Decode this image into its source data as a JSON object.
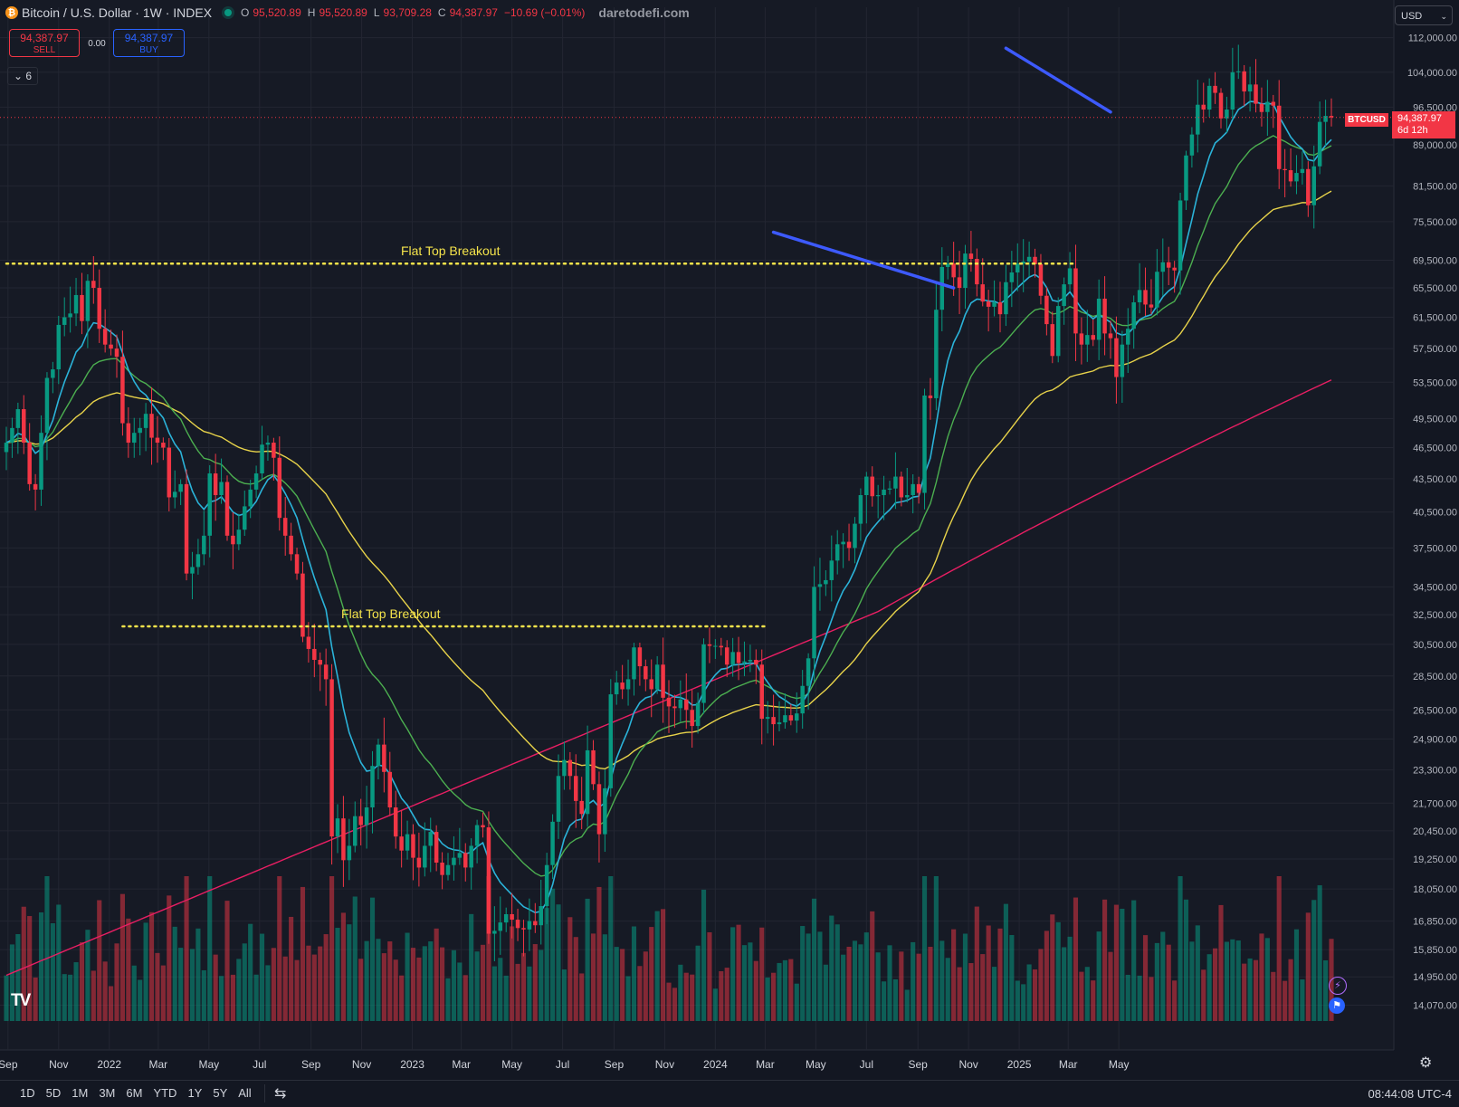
{
  "header": {
    "coin_glyph": "₿",
    "title": "Bitcoin / U.S. Dollar · 1W · INDEX",
    "ohlc": [
      {
        "k": "O",
        "v": "95,520.89"
      },
      {
        "k": "H",
        "v": "95,520.89"
      },
      {
        "k": "L",
        "v": "93,709.28"
      },
      {
        "k": "C",
        "v": "94,387.97"
      },
      {
        "k": "",
        "v": "−10.69 (−0.01%)"
      }
    ],
    "watermark": "daretodefi.com"
  },
  "trade": {
    "sell_price": "94,387.97",
    "sell_label": "SELL",
    "spread": "0.00",
    "buy_price": "94,387.97",
    "buy_label": "BUY"
  },
  "indicators_toggle": "6",
  "currency": "USD",
  "last_price": {
    "symbol": "BTCUSD",
    "price": "94,387.97",
    "countdown": "6d 12h",
    "value": 94387.97
  },
  "bottom_bar": {
    "ranges": [
      "1D",
      "5D",
      "1M",
      "3M",
      "6M",
      "YTD",
      "1Y",
      "5Y",
      "All"
    ],
    "clock": "08:44:08 UTC-4"
  },
  "colors": {
    "bg": "#161a25",
    "up": "#089981",
    "down": "#f23645",
    "grid": "#232632",
    "ema_fast": "#2bb3d9",
    "ema_mid": "#4caf50",
    "ema_slow": "#e8d34a",
    "ma_long": "#e91e63",
    "trendline": "#3d5afe",
    "breakout": "#f5e44b"
  },
  "chart_data": {
    "type": "candlestick",
    "timeframe": "1W",
    "y_scale": "log",
    "y_ticks": [
      112000,
      104000,
      96500,
      89000,
      81500,
      75500,
      69500,
      65500,
      61500,
      57500,
      53500,
      49500,
      46500,
      43500,
      40500,
      37500,
      34500,
      32500,
      30500,
      28500,
      26500,
      24900,
      23300,
      21700,
      20450,
      19250,
      18050,
      16850,
      15850,
      14950,
      14070
    ],
    "y_tick_labels": [
      "112,000.00",
      "104,000.00",
      "96,500.00",
      "89,000.00",
      "81,500.00",
      "75,500.00",
      "69,500.00",
      "65,500.00",
      "61,500.00",
      "57,500.00",
      "53,500.00",
      "49,500.00",
      "46,500.00",
      "43,500.00",
      "40,500.00",
      "37,500.00",
      "34,500.00",
      "32,500.00",
      "30,500.00",
      "28,500.00",
      "26,500.00",
      "24,900.00",
      "23,300.00",
      "21,700.00",
      "20,450.00",
      "19,250.00",
      "18,050.00",
      "16,850.00",
      "15,850.00",
      "14,950.00",
      "14,070.00"
    ],
    "x_ticks": [
      "Sep",
      "Nov",
      "2022",
      "Mar",
      "May",
      "Jul",
      "Sep",
      "Nov",
      "2023",
      "Mar",
      "May",
      "Jul",
      "Sep",
      "Nov",
      "2024",
      "Mar",
      "May",
      "Jul",
      "Sep",
      "Nov",
      "2025",
      "Mar",
      "May"
    ],
    "x_start": "2021-08-30",
    "closes": [
      47000,
      48500,
      50500,
      47000,
      43000,
      42500,
      48000,
      54000,
      55000,
      60500,
      61500,
      62000,
      64500,
      61000,
      66500,
      65500,
      60000,
      58000,
      57500,
      56500,
      49000,
      47000,
      48000,
      48500,
      50000,
      47500,
      47000,
      46500,
      41800,
      42300,
      43000,
      35500,
      36000,
      37000,
      38500,
      44000,
      42000,
      43200,
      38500,
      37800,
      39000,
      41000,
      42500,
      44000,
      46800,
      47000,
      45500,
      40000,
      38500,
      37000,
      35500,
      31000,
      30200,
      29500,
      29200,
      28300,
      20200,
      21000,
      19200,
      19800,
      21100,
      20700,
      21500,
      23500,
      24600,
      23200,
      21500,
      20200,
      19600,
      20300,
      19300,
      18900,
      19800,
      20400,
      19100,
      18600,
      19000,
      19300,
      19500,
      18900,
      19800,
      20700,
      20600,
      16400,
      16500,
      16800,
      17100,
      16900,
      16600,
      16550,
      16850,
      16700,
      17400,
      19000,
      20850,
      23000,
      23800,
      23000,
      21800,
      21200,
      24300,
      22600,
      20300,
      22400,
      27400,
      28100,
      27700,
      28300,
      30300,
      29100,
      28300,
      27700,
      29200,
      27200,
      26700,
      26600,
      27100,
      26500,
      25600,
      26900,
      30500,
      30400,
      30400,
      30300,
      29200,
      30000,
      29300,
      29400,
      29500,
      29200,
      26000,
      26100,
      25700,
      25800,
      26200,
      25900,
      26300,
      27900,
      29600,
      34500,
      34700,
      35000,
      36500,
      37800,
      38000,
      37500,
      39500,
      42000,
      43700,
      41900,
      42000,
      42500,
      42600,
      43700,
      41800,
      42000,
      43000,
      42200,
      52000,
      51700,
      62500,
      68500,
      69000,
      67000,
      65500,
      70500,
      69700,
      66000,
      63600,
      62900,
      63500,
      61900,
      66300,
      67700,
      69000,
      69300,
      70000,
      68900,
      64400,
      60600,
      56600,
      63000,
      66000,
      68300,
      59400,
      58000,
      59200,
      58600,
      64000,
      59400,
      58800,
      54100,
      58000,
      60000,
      63500,
      65200,
      63200,
      62800,
      67800,
      69200,
      68400,
      68000,
      79000,
      87000,
      91000,
      97000,
      96000,
      101000,
      99500,
      94200,
      96000,
      104000,
      104200,
      99800,
      101300,
      97200,
      95500,
      97600,
      96800,
      84500,
      84300,
      82300,
      83800,
      84500,
      78200,
      85000,
      93500,
      94700,
      94388
    ],
    "annotations": [
      "Flat Top Breakout",
      "Flat Top Breakout"
    ],
    "series": [
      {
        "type": "ema",
        "color": "#2bb3d9"
      },
      {
        "type": "ema",
        "color": "#4caf50"
      },
      {
        "type": "ema",
        "color": "#e8d34a"
      },
      {
        "type": "ma",
        "color": "#e91e63"
      }
    ],
    "breakout_lines": [
      {
        "price": 69000,
        "from": "2021-08-30",
        "to": "2025-03-10",
        "label": "Flat Top Breakout"
      },
      {
        "price": 31700,
        "from": "2022-01-17",
        "to": "2024-03-04",
        "label": "Flat Top Breakout"
      }
    ],
    "trendlines": [
      {
        "from_date": "2024-03-11",
        "from_price": 73800,
        "to_date": "2024-10-14",
        "to_price": 65500
      },
      {
        "from_date": "2024-12-16",
        "from_price": 109500,
        "to_date": "2025-04-21",
        "to_price": 95500
      }
    ]
  }
}
